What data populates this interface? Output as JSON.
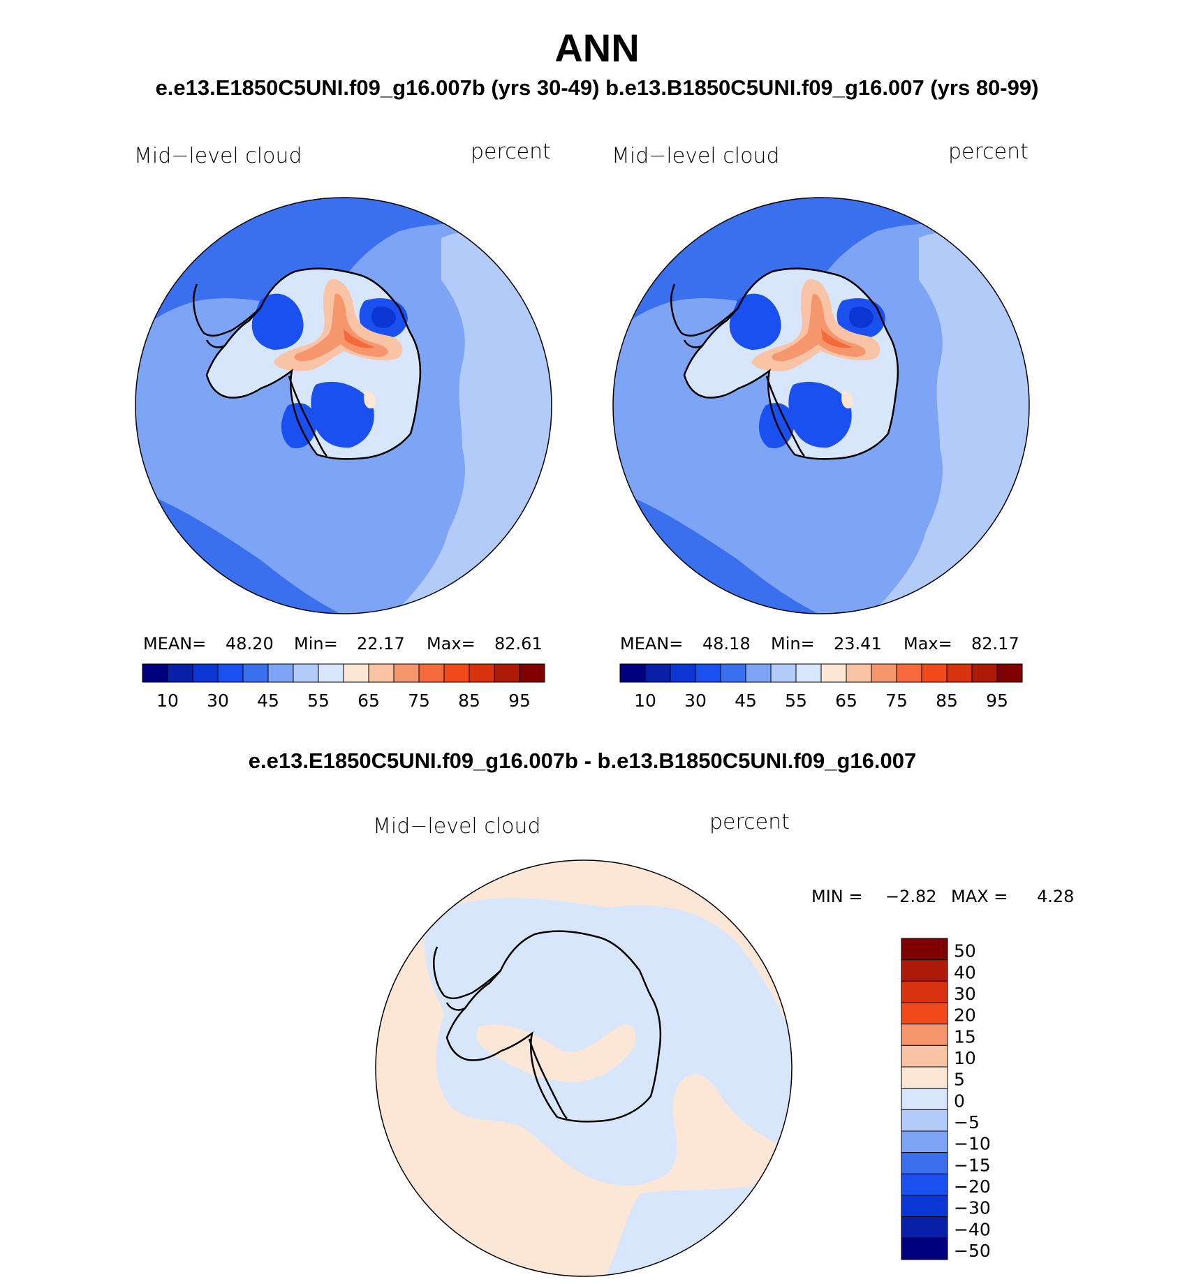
{
  "main_title": "ANN",
  "case_subtitle": "e.e13.E1850C5UNI.f09_g16.007b (yrs 30-49)  b.e13.B1850C5UNI.f09_g16.007 (yrs 80-99)",
  "diff_subtitle": "e.e13.E1850C5UNI.f09_g16.007b - b.e13.B1850C5UNI.f09_g16.007",
  "panels": [
    {
      "variable": "Mid−level cloud",
      "units": "percent",
      "mean_label": "MEAN=",
      "mean": "48.20",
      "min_label": "Min=",
      "min": "22.17",
      "max_label": "Max=",
      "max": "82.61"
    },
    {
      "variable": "Mid−level cloud",
      "units": "percent",
      "mean_label": "MEAN=",
      "mean": "48.18",
      "min_label": "Min=",
      "min": "23.41",
      "max_label": "Max=",
      "max": "82.17"
    }
  ],
  "diff_panel": {
    "variable": "Mid−level cloud",
    "units": "percent",
    "min_label": "MIN =",
    "min": "−2.82",
    "max_label": "MAX =",
    "max": "4.28"
  },
  "field_colorbar": {
    "colors": [
      "#00007f",
      "#0a1fa8",
      "#0b36d3",
      "#1a4ff0",
      "#3a70ee",
      "#7ea4f6",
      "#b2cbf9",
      "#d8e6fb",
      "#fce6d6",
      "#f9c4a6",
      "#f6966c",
      "#f46a3c",
      "#f34a1c",
      "#d8320f",
      "#ad1a08",
      "#7e0000"
    ],
    "tick_labels": [
      "10",
      "30",
      "45",
      "55",
      "65",
      "75",
      "85",
      "95"
    ]
  },
  "diff_colorbar": {
    "colors": [
      "#7e0000",
      "#ad1a08",
      "#d8320f",
      "#f34a1c",
      "#f6966c",
      "#f9c4a6",
      "#fce6d6",
      "#d8e6fb",
      "#b2cbf9",
      "#7ea4f6",
      "#3a70ee",
      "#1a4ff0",
      "#0b36d3",
      "#0a1fa8",
      "#00007f"
    ],
    "tick_labels": [
      "50",
      "40",
      "30",
      "20",
      "15",
      "10",
      "5",
      "0",
      "−5",
      "−10",
      "−15",
      "−20",
      "−30",
      "−40",
      "−50"
    ]
  },
  "map_colors": {
    "ocean_north": "#3a70ee",
    "ocean_main": "#7ea4f6",
    "ocean_light": "#b2cbf9",
    "deep_blue": "#1a4ff0",
    "darkest_blue": "#0b36d3",
    "white_blue": "#d8e6fb",
    "pale_orange": "#fce6d6",
    "peach": "#f9c4a6",
    "orange": "#f6966c",
    "red_orange": "#f46a3c",
    "diff_positive": "#fce6d6",
    "diff_negative": "#d8e6fb",
    "coast": "#000000"
  }
}
